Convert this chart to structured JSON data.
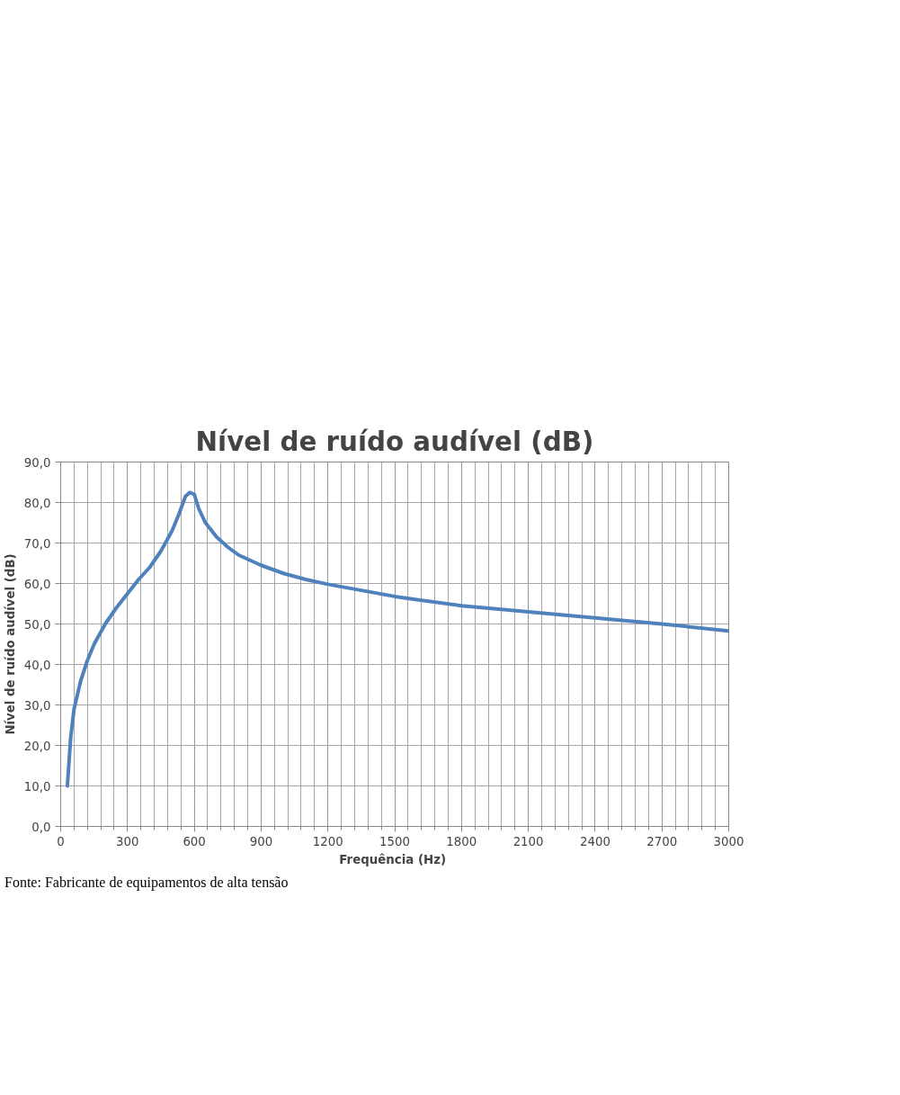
{
  "chart_data": {
    "type": "line",
    "title": "Nível de ruído audível (dB)",
    "xlabel": "Frequência  (Hz)",
    "ylabel": "Nível de ruído audível (dB)",
    "annotations": [
      "Fonte: Fabricante de equipamentos de alta tensão"
    ],
    "x": [
      30,
      45,
      60,
      90,
      120,
      150,
      200,
      250,
      300,
      350,
      400,
      450,
      500,
      530,
      560,
      580,
      600,
      620,
      650,
      700,
      750,
      800,
      900,
      1000,
      1100,
      1200,
      1300,
      1400,
      1500,
      1600,
      1800,
      2000,
      2100,
      2400,
      2700,
      3000
    ],
    "series": [
      {
        "color": "#4f81bd",
        "values": [
          10,
          22,
          29,
          36,
          41,
          45,
          50,
          54,
          57.5,
          61,
          64,
          68,
          73,
          77,
          81.5,
          82.5,
          82,
          78.5,
          75,
          71.5,
          69,
          67,
          64.5,
          62.5,
          61,
          59.8,
          58.8,
          57.8,
          56.8,
          56,
          54.5,
          53.5,
          53,
          51.5,
          50,
          48.3
        ]
      }
    ],
    "xlim": [
      0,
      3000
    ],
    "xticks": [
      0,
      300,
      600,
      900,
      1200,
      1500,
      1800,
      2100,
      2400,
      2700,
      3000
    ],
    "ylim": [
      0,
      90
    ],
    "yticks": [
      {
        "value": 0,
        "label": "0,0"
      },
      {
        "value": 10,
        "label": "10,0"
      },
      {
        "value": 20,
        "label": "20,0"
      },
      {
        "value": 30,
        "label": "30,0"
      },
      {
        "value": 40,
        "label": "40,0"
      },
      {
        "value": 50,
        "label": "50,0"
      },
      {
        "value": 60,
        "label": "60,0"
      },
      {
        "value": 70,
        "label": "70,0"
      },
      {
        "value": 80,
        "label": "80,0"
      },
      {
        "value": 90,
        "label": "90,0"
      }
    ],
    "grid": true,
    "marker": "none",
    "line_style": "solid"
  }
}
